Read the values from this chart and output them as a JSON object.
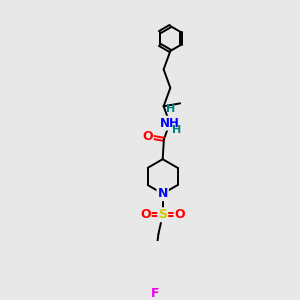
{
  "background_color": "#e8e8e8",
  "bond_color": "#000000",
  "atom_colors": {
    "O": "#ff0000",
    "N": "#0000ff",
    "S": "#cccc00",
    "F": "#ee00ee",
    "H": "#008080",
    "C": "#000000"
  },
  "figsize": [
    3.0,
    3.0
  ],
  "dpi": 100
}
